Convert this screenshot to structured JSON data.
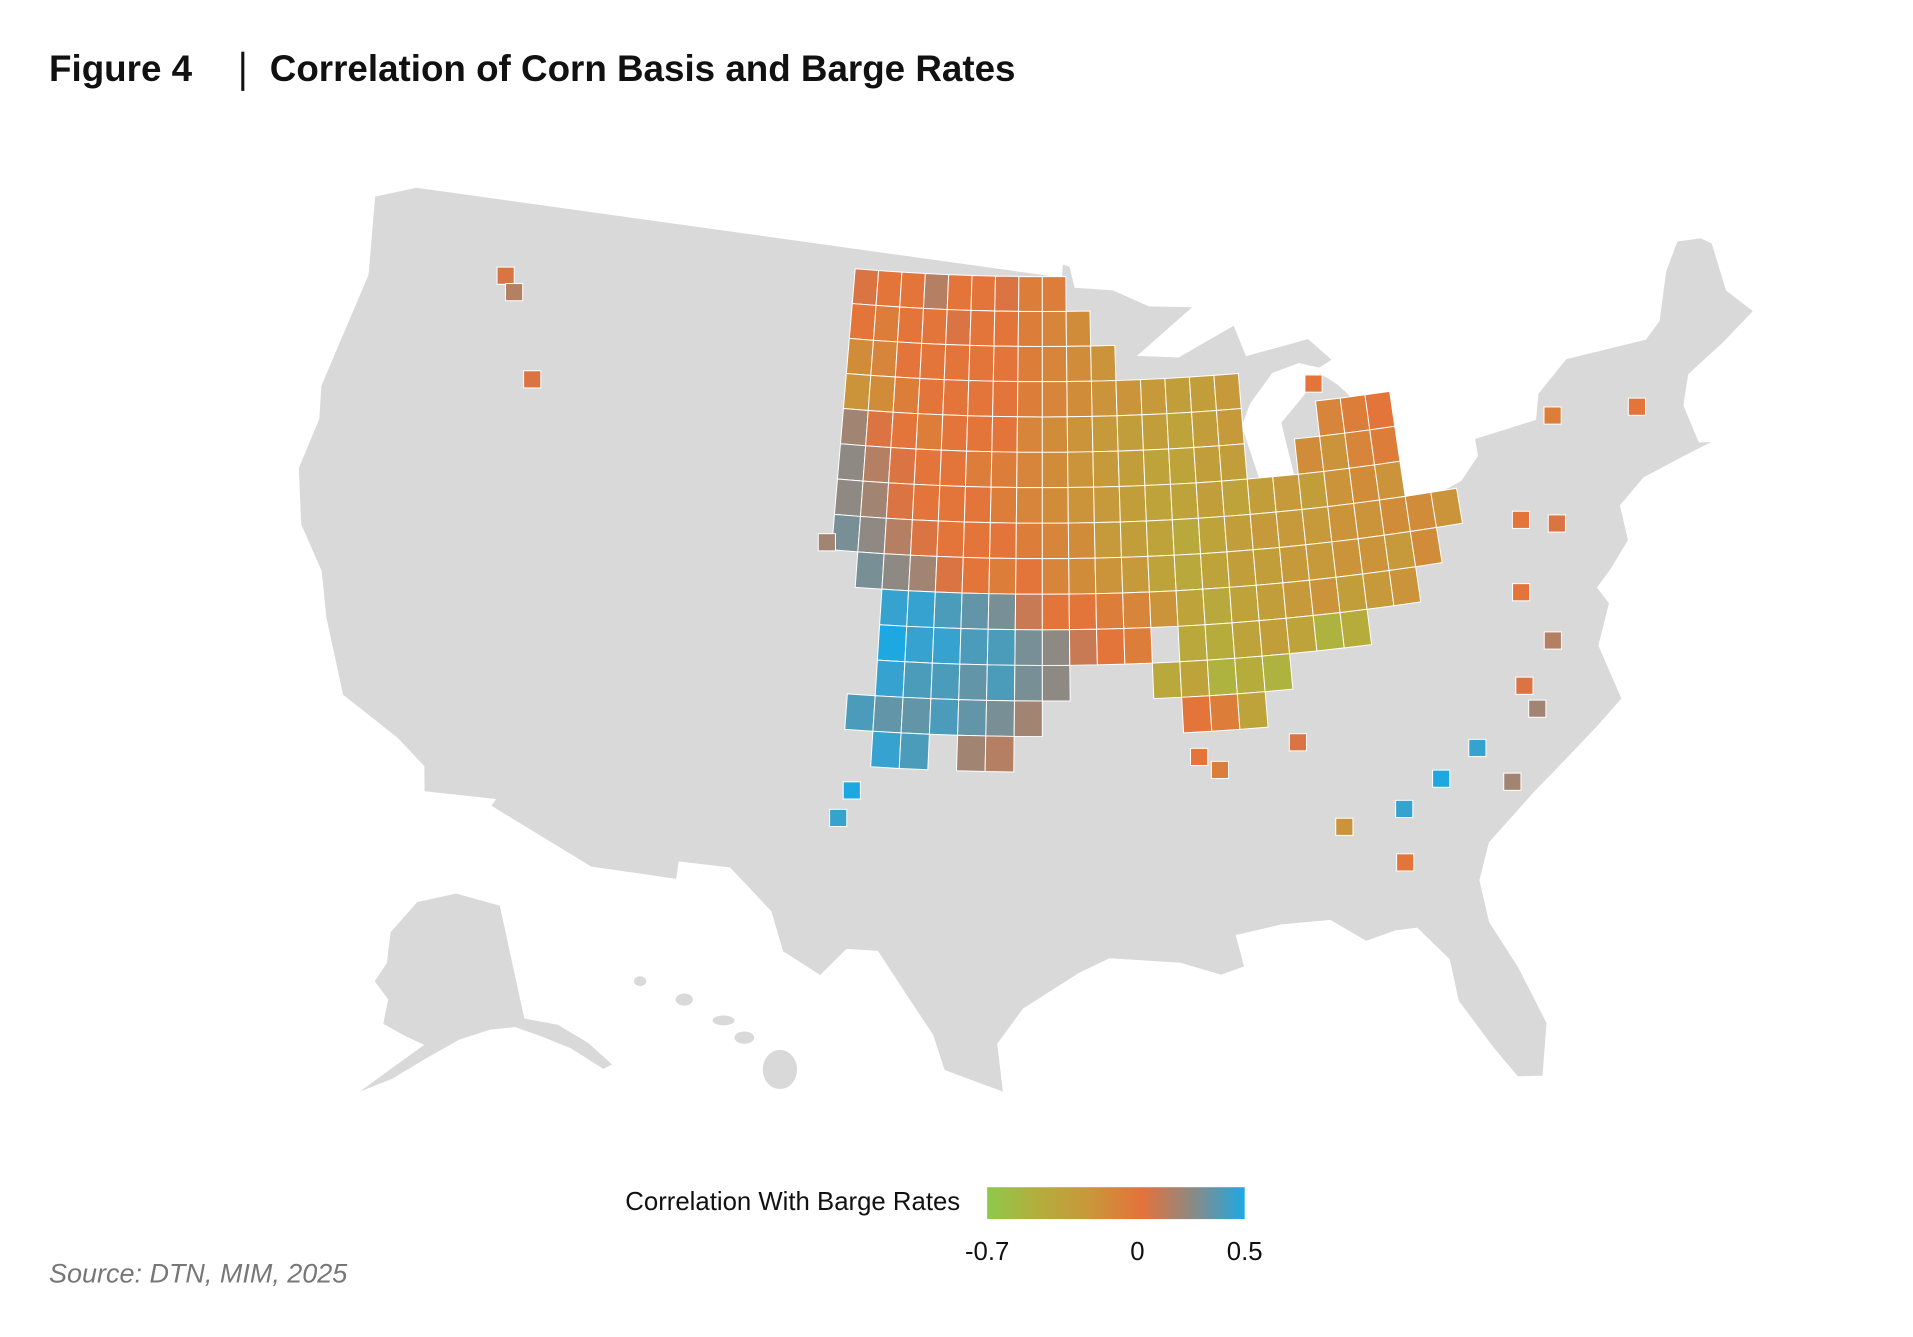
{
  "chart_data": {
    "type": "choropleth",
    "figure_label": "Figure 4",
    "title": "Correlation of Corn Basis and Barge Rates",
    "source": "Source: DTN, MIM, 2025",
    "legend": {
      "title": "Correlation With Barge Rates",
      "range": [
        -0.7,
        0.5
      ],
      "ticks": [
        -0.7,
        0,
        0.5
      ],
      "colors": [
        "#8dc94b",
        "#b4ad3c",
        "#c9973a",
        "#e5723a",
        "#8a8a85",
        "#1ea8e2"
      ]
    },
    "grid": [
      {
        "lat": 48.5,
        "lon": -103.5,
        "values": [
          0.05,
          0.0,
          0.0,
          0.15,
          0.0,
          0.0,
          0.05,
          -0.05,
          -0.05
        ]
      },
      {
        "lat": 47.5,
        "lon": -103.5,
        "values": [
          0.0,
          -0.05,
          0.0,
          0.0,
          0.05,
          0.0,
          0.0,
          -0.05,
          -0.1,
          -0.15
        ]
      },
      {
        "lat": 46.5,
        "lon": -103.5,
        "values": [
          -0.15,
          -0.1,
          0.0,
          0.0,
          0.0,
          0.0,
          0.0,
          -0.05,
          -0.1,
          -0.15,
          -0.2
        ]
      },
      {
        "lat": 45.5,
        "lon": -103.5,
        "values": [
          -0.2,
          -0.15,
          -0.05,
          0.0,
          0.0,
          0.0,
          0.0,
          -0.05,
          -0.1,
          -0.15,
          -0.2,
          -0.2,
          -0.25,
          -0.3,
          -0.3,
          -0.25
        ]
      },
      {
        "lat": 44.5,
        "lon": -103.5,
        "values": [
          0.2,
          0.05,
          0.0,
          -0.05,
          0.0,
          0.0,
          0.0,
          -0.1,
          -0.15,
          -0.2,
          -0.25,
          -0.3,
          -0.3,
          -0.35,
          -0.3,
          -0.25,
          null,
          null,
          null,
          -0.1,
          -0.05,
          0.0
        ]
      },
      {
        "lat": 43.5,
        "lon": -103.5,
        "values": [
          0.25,
          0.15,
          0.05,
          0.0,
          0.0,
          -0.05,
          -0.05,
          -0.1,
          -0.15,
          -0.2,
          -0.25,
          -0.3,
          -0.35,
          -0.35,
          -0.3,
          -0.3,
          null,
          null,
          -0.15,
          -0.2,
          -0.1,
          -0.05
        ]
      },
      {
        "lat": 42.5,
        "lon": -103.5,
        "values": [
          0.25,
          0.2,
          0.05,
          0.0,
          0.0,
          0.0,
          -0.05,
          -0.1,
          -0.15,
          -0.2,
          -0.25,
          -0.3,
          -0.35,
          -0.35,
          -0.3,
          -0.35,
          -0.3,
          -0.25,
          -0.3,
          -0.2,
          -0.15,
          -0.2
        ]
      },
      {
        "lat": 41.5,
        "lon": -103.5,
        "values": [
          0.3,
          0.25,
          0.15,
          0.05,
          0.0,
          0.0,
          0.0,
          -0.05,
          -0.1,
          -0.15,
          -0.25,
          -0.3,
          -0.35,
          -0.4,
          -0.35,
          -0.3,
          -0.25,
          -0.25,
          -0.25,
          -0.2,
          -0.2,
          -0.15,
          -0.15,
          -0.2
        ]
      },
      {
        "lat": 40.5,
        "lon": -102.5,
        "values": [
          0.3,
          0.25,
          0.2,
          0.05,
          0.0,
          -0.05,
          0.0,
          -0.1,
          -0.15,
          -0.2,
          -0.25,
          -0.35,
          -0.4,
          -0.35,
          -0.3,
          -0.3,
          -0.25,
          -0.25,
          -0.2,
          -0.2,
          -0.25,
          -0.15
        ]
      },
      {
        "lat": 39.5,
        "lon": -101.5,
        "values": [
          0.45,
          0.45,
          0.4,
          0.35,
          0.3,
          0.1,
          0.0,
          0.0,
          -0.05,
          -0.1,
          -0.2,
          -0.35,
          -0.4,
          -0.35,
          -0.3,
          -0.25,
          -0.2,
          -0.3,
          -0.25,
          -0.2
        ]
      },
      {
        "lat": 38.5,
        "lon": -101.5,
        "values": [
          0.5,
          0.45,
          0.45,
          0.4,
          0.4,
          0.3,
          0.25,
          0.1,
          0.0,
          -0.05,
          null,
          -0.4,
          -0.45,
          -0.35,
          -0.3,
          -0.35,
          -0.5,
          -0.45
        ]
      },
      {
        "lat": 37.5,
        "lon": -101.5,
        "values": [
          0.45,
          0.4,
          0.4,
          0.35,
          0.4,
          0.3,
          0.25,
          null,
          null,
          null,
          -0.4,
          -0.35,
          -0.5,
          -0.45,
          -0.5
        ]
      },
      {
        "lat": 36.5,
        "lon": -102.5,
        "values": [
          0.4,
          0.35,
          0.35,
          0.4,
          0.35,
          0.3,
          0.2,
          null,
          null,
          null,
          null,
          null,
          0.0,
          -0.05,
          -0.35
        ]
      },
      {
        "lat": 35.5,
        "lon": -101.5,
        "values": [
          0.45,
          0.4,
          null,
          0.2,
          0.15
        ]
      }
    ],
    "points": {
      "lon": [
        -118.5,
        -118.0,
        -116.5,
        -104.2,
        -102.6,
        -103.0,
        -82.2,
        -80.8,
        -83.6,
        -79.8,
        -83.8,
        -85.7,
        -78.5,
        -78.8,
        -78.3,
        -77.5,
        -77.8,
        -76.5,
        -75.8,
        -72.5,
        -90.5,
        -89.8,
        -87.0,
        -85.0
      ],
      "lat": [
        47.2,
        46.8,
        44.5,
        41.2,
        34.3,
        33.5,
        34.0,
        34.7,
        33.3,
        33.6,
        31.8,
        33.0,
        35.5,
        36.2,
        38.8,
        37.3,
        40.8,
        40.5,
        43.5,
        43.2,
        35.3,
        34.9,
        35.5,
        45.5
      ],
      "values": [
        0.05,
        0.15,
        0.05,
        0.2,
        0.5,
        0.45,
        0.5,
        0.45,
        0.45,
        0.2,
        0.0,
        -0.2,
        0.2,
        0.05,
        0.0,
        0.15,
        0.0,
        0.05,
        -0.05,
        0.0,
        0.0,
        -0.05,
        0.05,
        0.0
      ]
    }
  }
}
